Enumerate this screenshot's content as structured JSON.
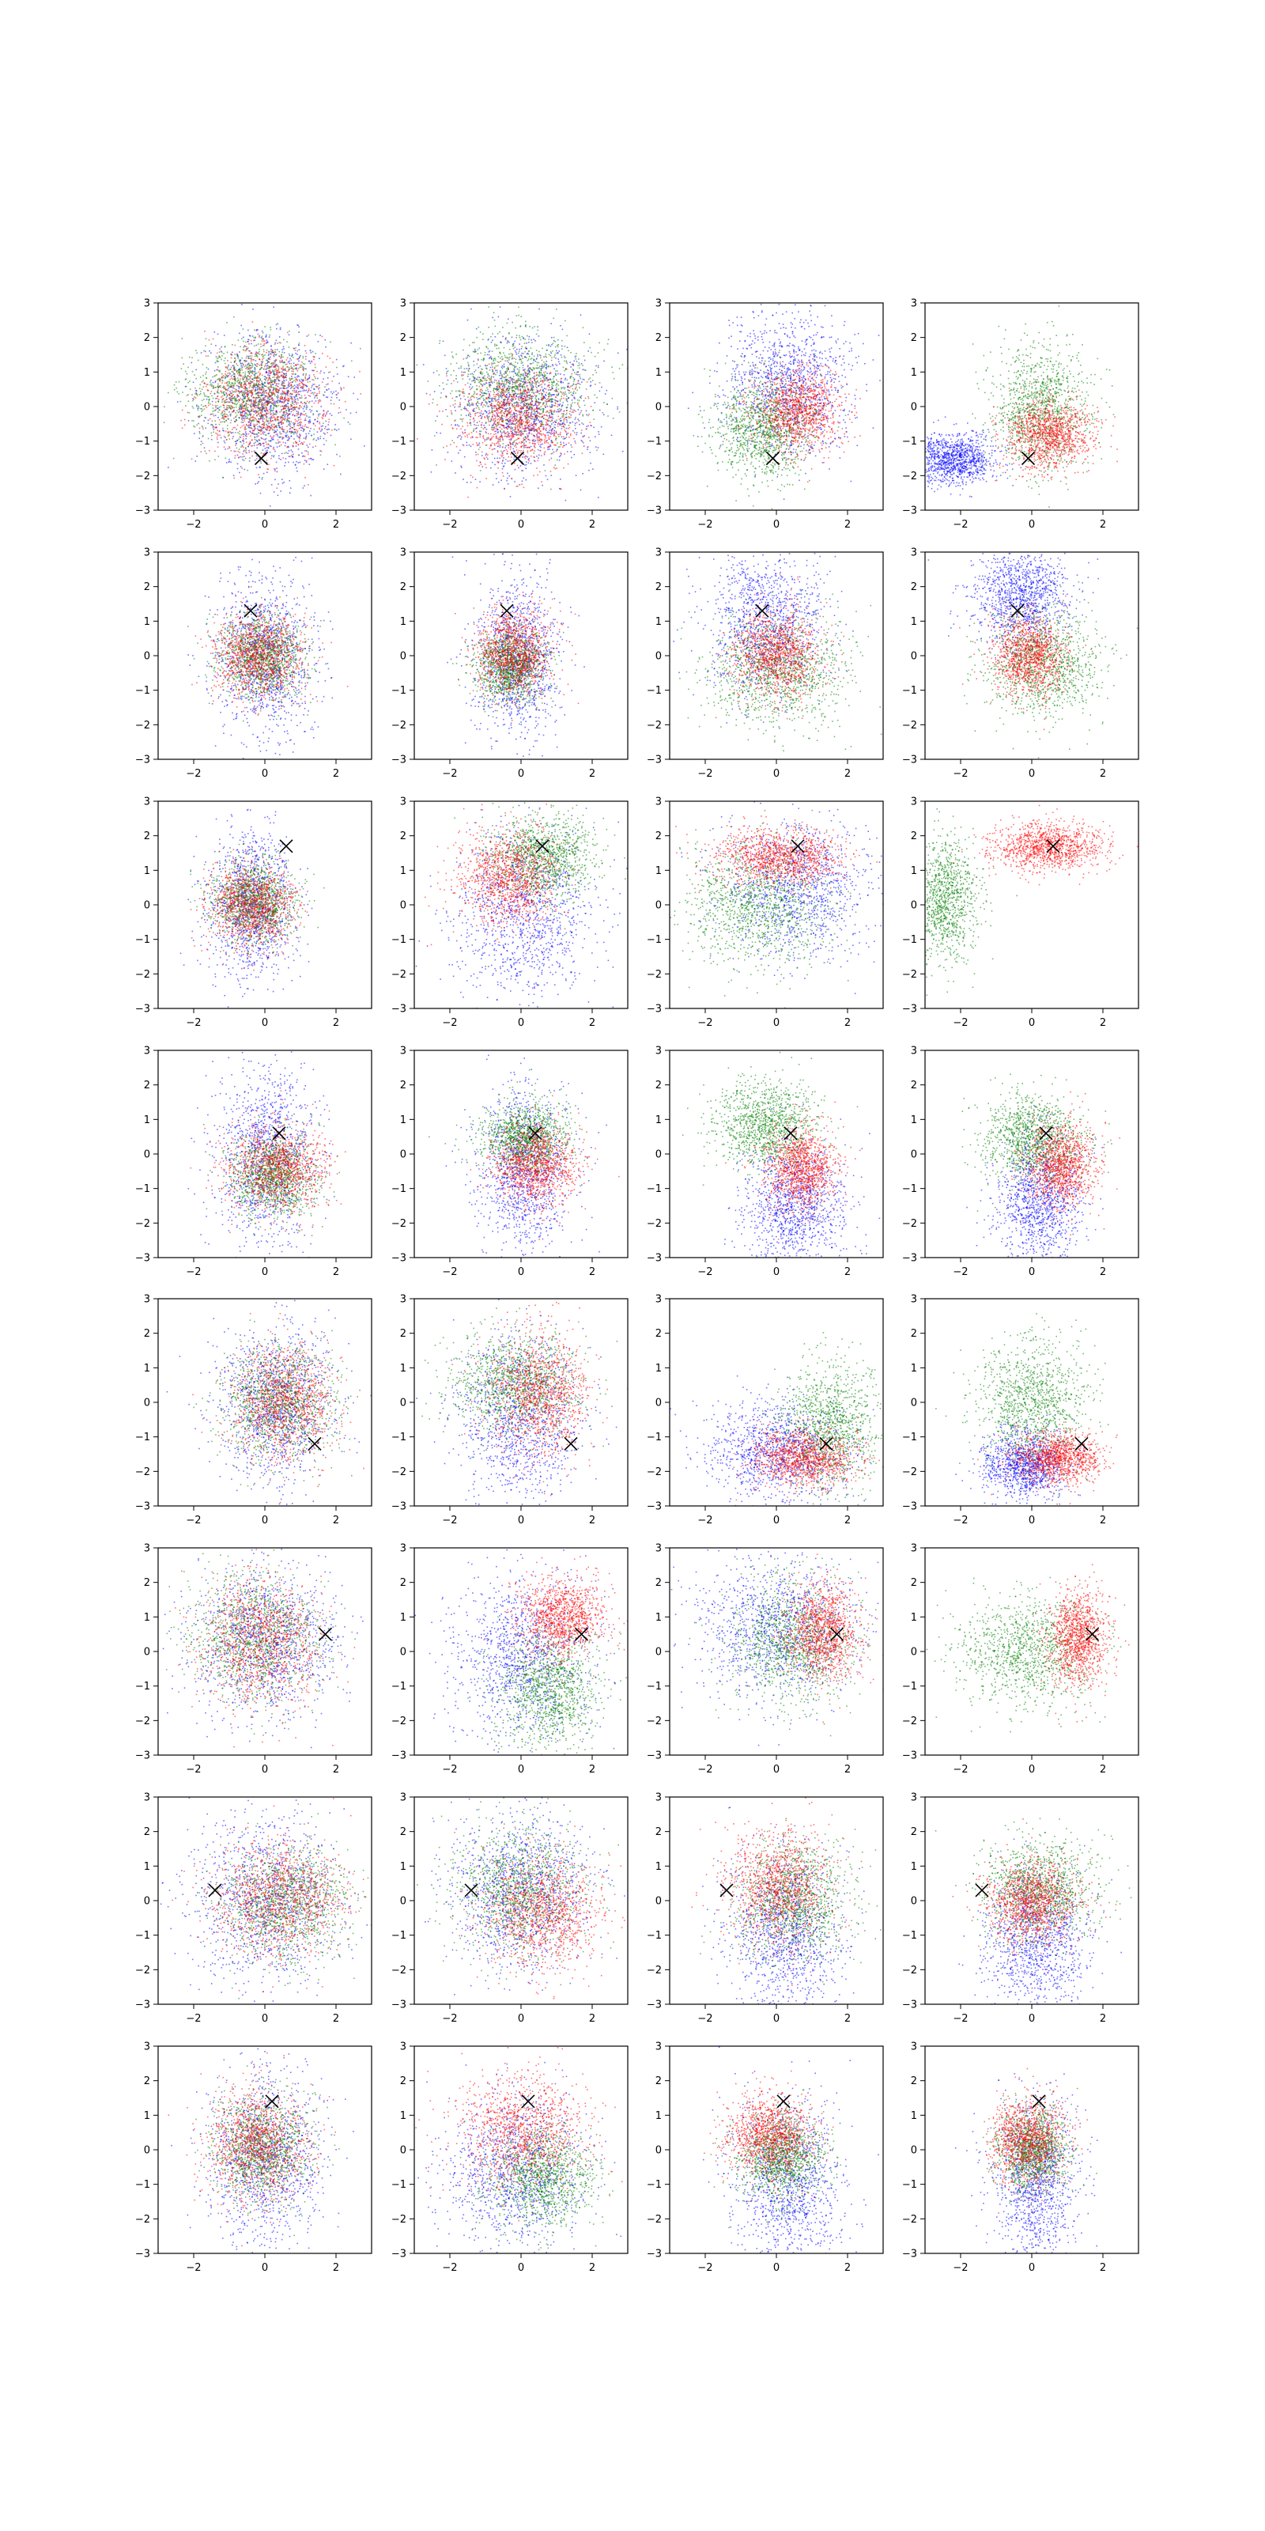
{
  "figure": {
    "rows": 8,
    "cols": 4,
    "background": "#ffffff"
  },
  "chart_data": {
    "type": "scatter",
    "xlim": [
      -3,
      3
    ],
    "ylim": [
      -3,
      3
    ],
    "x_ticks": [
      -2,
      0,
      2
    ],
    "y_ticks": [
      -3,
      -2,
      -1,
      0,
      1,
      2,
      3
    ],
    "x_tick_labels": [
      "−2",
      "0",
      "2"
    ],
    "y_tick_labels": [
      "−3",
      "−2",
      "−1",
      "0",
      "1",
      "2",
      "3"
    ],
    "grid": false,
    "legend": "none",
    "series_colors": {
      "blue": "#0000ff",
      "green": "#008000",
      "red": "#ff0000"
    },
    "marker_color": "#000000",
    "rows": [
      {
        "marker": [
          -0.1,
          -1.5
        ],
        "panels": [
          {
            "clusters": [
              {
                "color": "blue",
                "cx": 0.2,
                "cy": 0.1,
                "sx": 0.9,
                "sy": 1.0
              },
              {
                "color": "green",
                "cx": -0.4,
                "cy": 0.4,
                "sx": 0.9,
                "sy": 0.8
              },
              {
                "color": "red",
                "cx": 0.0,
                "cy": 0.2,
                "sx": 0.9,
                "sy": 0.8
              }
            ]
          },
          {
            "clusters": [
              {
                "color": "blue",
                "cx": 0.1,
                "cy": 0.0,
                "sx": 1.0,
                "sy": 1.0
              },
              {
                "color": "green",
                "cx": 0.0,
                "cy": 0.6,
                "sx": 1.0,
                "sy": 0.8
              },
              {
                "color": "red",
                "cx": -0.1,
                "cy": -0.3,
                "sx": 0.8,
                "sy": 0.7
              }
            ]
          },
          {
            "clusters": [
              {
                "color": "blue",
                "cx": 0.3,
                "cy": 0.7,
                "sx": 0.9,
                "sy": 1.0
              },
              {
                "color": "green",
                "cx": -0.4,
                "cy": -0.6,
                "sx": 0.7,
                "sy": 0.7
              },
              {
                "color": "red",
                "cx": 0.6,
                "cy": -0.1,
                "sx": 0.6,
                "sy": 0.6
              }
            ]
          },
          {
            "clusters": [
              {
                "color": "blue",
                "cx": -2.2,
                "cy": -1.5,
                "sx": 0.6,
                "sy": 0.35
              },
              {
                "color": "green",
                "cx": 0.2,
                "cy": 0.0,
                "sx": 0.7,
                "sy": 0.9
              },
              {
                "color": "red",
                "cx": 0.5,
                "cy": -0.8,
                "sx": 0.6,
                "sy": 0.5
              }
            ]
          }
        ]
      },
      {
        "marker": [
          -0.4,
          1.3
        ],
        "panels": [
          {
            "clusters": [
              {
                "color": "blue",
                "cx": 0.0,
                "cy": 0.0,
                "sx": 0.7,
                "sy": 1.2
              },
              {
                "color": "green",
                "cx": -0.1,
                "cy": 0.0,
                "sx": 0.6,
                "sy": 0.6
              },
              {
                "color": "red",
                "cx": -0.2,
                "cy": 0.0,
                "sx": 0.6,
                "sy": 0.6
              }
            ]
          },
          {
            "clusters": [
              {
                "color": "blue",
                "cx": -0.1,
                "cy": 0.0,
                "sx": 0.6,
                "sy": 1.2
              },
              {
                "color": "green",
                "cx": -0.3,
                "cy": -0.3,
                "sx": 0.5,
                "sy": 0.5
              },
              {
                "color": "red",
                "cx": -0.2,
                "cy": 0.1,
                "sx": 0.5,
                "sy": 0.6
              }
            ]
          },
          {
            "clusters": [
              {
                "color": "blue",
                "cx": -0.3,
                "cy": 1.0,
                "sx": 0.8,
                "sy": 1.0
              },
              {
                "color": "green",
                "cx": 0.0,
                "cy": -0.4,
                "sx": 1.0,
                "sy": 0.8
              },
              {
                "color": "red",
                "cx": 0.0,
                "cy": 0.1,
                "sx": 0.6,
                "sy": 0.6
              }
            ]
          },
          {
            "clusters": [
              {
                "color": "blue",
                "cx": -0.3,
                "cy": 1.8,
                "sx": 0.7,
                "sy": 0.7
              },
              {
                "color": "green",
                "cx": 0.3,
                "cy": -0.2,
                "sx": 0.8,
                "sy": 0.8
              },
              {
                "color": "red",
                "cx": -0.1,
                "cy": 0.0,
                "sx": 0.5,
                "sy": 0.6
              }
            ]
          }
        ]
      },
      {
        "marker": [
          0.6,
          1.7
        ],
        "panels": [
          {
            "clusters": [
              {
                "color": "blue",
                "cx": -0.4,
                "cy": 0.0,
                "sx": 0.6,
                "sy": 1.1
              },
              {
                "color": "green",
                "cx": -0.3,
                "cy": 0.1,
                "sx": 0.6,
                "sy": 0.6
              },
              {
                "color": "red",
                "cx": -0.4,
                "cy": 0.0,
                "sx": 0.6,
                "sy": 0.6
              }
            ]
          },
          {
            "clusters": [
              {
                "color": "blue",
                "cx": 0.1,
                "cy": -0.3,
                "sx": 1.0,
                "sy": 1.2
              },
              {
                "color": "green",
                "cx": 0.6,
                "cy": 1.4,
                "sx": 0.7,
                "sy": 0.6
              },
              {
                "color": "red",
                "cx": -0.4,
                "cy": 0.8,
                "sx": 0.7,
                "sy": 0.7
              }
            ]
          },
          {
            "clusters": [
              {
                "color": "blue",
                "cx": 0.6,
                "cy": 0.5,
                "sx": 1.0,
                "sy": 1.0
              },
              {
                "color": "green",
                "cx": -0.6,
                "cy": 0.0,
                "sx": 1.0,
                "sy": 0.9
              },
              {
                "color": "red",
                "cx": 0.0,
                "cy": 1.4,
                "sx": 0.9,
                "sy": 0.4
              }
            ]
          },
          {
            "clusters": [
              {
                "color": "green",
                "cx": -2.5,
                "cy": 0.2,
                "sx": 0.5,
                "sy": 0.9
              },
              {
                "color": "red",
                "cx": 0.4,
                "cy": 1.7,
                "sx": 0.8,
                "sy": 0.35
              }
            ]
          }
        ]
      },
      {
        "marker": [
          0.4,
          0.6
        ],
        "panels": [
          {
            "clusters": [
              {
                "color": "blue",
                "cx": 0.0,
                "cy": 0.0,
                "sx": 0.7,
                "sy": 1.3
              },
              {
                "color": "green",
                "cx": 0.2,
                "cy": -0.6,
                "sx": 0.6,
                "sy": 0.6
              },
              {
                "color": "red",
                "cx": 0.3,
                "cy": -0.4,
                "sx": 0.7,
                "sy": 0.6
              }
            ]
          },
          {
            "clusters": [
              {
                "color": "blue",
                "cx": 0.1,
                "cy": -0.5,
                "sx": 0.7,
                "sy": 1.2
              },
              {
                "color": "green",
                "cx": 0.1,
                "cy": 0.5,
                "sx": 0.6,
                "sy": 0.5
              },
              {
                "color": "red",
                "cx": 0.4,
                "cy": -0.3,
                "sx": 0.6,
                "sy": 0.6
              }
            ]
          },
          {
            "clusters": [
              {
                "color": "blue",
                "cx": 0.5,
                "cy": -1.5,
                "sx": 0.7,
                "sy": 0.9
              },
              {
                "color": "green",
                "cx": -0.3,
                "cy": 0.9,
                "sx": 0.7,
                "sy": 0.6
              },
              {
                "color": "red",
                "cx": 0.7,
                "cy": -0.4,
                "sx": 0.5,
                "sy": 0.6
              }
            ]
          },
          {
            "clusters": [
              {
                "color": "blue",
                "cx": 0.2,
                "cy": -1.3,
                "sx": 0.6,
                "sy": 0.9
              },
              {
                "color": "green",
                "cx": 0.0,
                "cy": 0.5,
                "sx": 0.7,
                "sy": 0.6
              },
              {
                "color": "red",
                "cx": 0.8,
                "cy": -0.3,
                "sx": 0.5,
                "sy": 0.6
              }
            ]
          }
        ]
      },
      {
        "marker": [
          1.4,
          -1.2
        ],
        "panels": [
          {
            "clusters": [
              {
                "color": "blue",
                "cx": 0.3,
                "cy": 0.0,
                "sx": 0.8,
                "sy": 1.1
              },
              {
                "color": "green",
                "cx": 0.4,
                "cy": 0.0,
                "sx": 0.8,
                "sy": 0.8
              },
              {
                "color": "red",
                "cx": 0.5,
                "cy": 0.0,
                "sx": 0.7,
                "sy": 0.8
              }
            ]
          },
          {
            "clusters": [
              {
                "color": "blue",
                "cx": 0.0,
                "cy": -0.5,
                "sx": 0.9,
                "sy": 1.2
              },
              {
                "color": "green",
                "cx": -0.2,
                "cy": 0.6,
                "sx": 0.9,
                "sy": 0.7
              },
              {
                "color": "red",
                "cx": 0.5,
                "cy": 0.3,
                "sx": 0.7,
                "sy": 0.9
              }
            ]
          },
          {
            "clusters": [
              {
                "color": "blue",
                "cx": 0.0,
                "cy": -1.4,
                "sx": 1.0,
                "sy": 0.7
              },
              {
                "color": "green",
                "cx": 1.5,
                "cy": -0.6,
                "sx": 0.7,
                "sy": 0.9
              },
              {
                "color": "red",
                "cx": 0.8,
                "cy": -1.6,
                "sx": 0.7,
                "sy": 0.4
              }
            ]
          },
          {
            "clusters": [
              {
                "color": "blue",
                "cx": -0.2,
                "cy": -1.8,
                "sx": 0.6,
                "sy": 0.5
              },
              {
                "color": "green",
                "cx": 0.0,
                "cy": 0.0,
                "sx": 0.8,
                "sy": 0.9
              },
              {
                "color": "red",
                "cx": 0.7,
                "cy": -1.6,
                "sx": 0.6,
                "sy": 0.35
              }
            ]
          }
        ]
      },
      {
        "marker": [
          1.7,
          0.5
        ],
        "panels": [
          {
            "clusters": [
              {
                "color": "blue",
                "cx": 0.0,
                "cy": 0.3,
                "sx": 1.0,
                "sy": 1.1
              },
              {
                "color": "green",
                "cx": -0.3,
                "cy": 0.4,
                "sx": 0.9,
                "sy": 0.9
              },
              {
                "color": "red",
                "cx": -0.1,
                "cy": 0.3,
                "sx": 0.8,
                "sy": 0.9
              }
            ]
          },
          {
            "clusters": [
              {
                "color": "blue",
                "cx": 0.0,
                "cy": -0.2,
                "sx": 1.0,
                "sy": 1.2
              },
              {
                "color": "green",
                "cx": 0.8,
                "cy": -1.1,
                "sx": 0.7,
                "sy": 0.8
              },
              {
                "color": "red",
                "cx": 1.1,
                "cy": 1.0,
                "sx": 0.6,
                "sy": 0.6
              }
            ]
          },
          {
            "clusters": [
              {
                "color": "blue",
                "cx": 0.0,
                "cy": 0.7,
                "sx": 1.1,
                "sy": 1.0
              },
              {
                "color": "green",
                "cx": 0.4,
                "cy": 0.3,
                "sx": 0.9,
                "sy": 0.9
              },
              {
                "color": "red",
                "cx": 1.3,
                "cy": 0.6,
                "sx": 0.5,
                "sy": 0.7
              }
            ]
          },
          {
            "clusters": [
              {
                "color": "green",
                "cx": -0.2,
                "cy": 0.0,
                "sx": 1.0,
                "sy": 0.8
              },
              {
                "color": "red",
                "cx": 1.3,
                "cy": 0.4,
                "sx": 0.4,
                "sy": 0.7
              }
            ]
          }
        ]
      },
      {
        "marker": [
          -1.4,
          0.3
        ],
        "panels": [
          {
            "clusters": [
              {
                "color": "blue",
                "cx": 0.0,
                "cy": 0.0,
                "sx": 1.0,
                "sy": 1.2
              },
              {
                "color": "green",
                "cx": 0.6,
                "cy": 0.0,
                "sx": 0.9,
                "sy": 0.8
              },
              {
                "color": "red",
                "cx": 0.4,
                "cy": 0.1,
                "sx": 0.9,
                "sy": 0.8
              }
            ]
          },
          {
            "clusters": [
              {
                "color": "blue",
                "cx": 0.0,
                "cy": 0.3,
                "sx": 1.0,
                "sy": 1.1
              },
              {
                "color": "green",
                "cx": -0.1,
                "cy": 0.3,
                "sx": 0.9,
                "sy": 0.9
              },
              {
                "color": "red",
                "cx": 0.6,
                "cy": -0.3,
                "sx": 0.8,
                "sy": 0.8
              }
            ]
          },
          {
            "clusters": [
              {
                "color": "blue",
                "cx": 0.3,
                "cy": -1.0,
                "sx": 0.8,
                "sy": 1.2
              },
              {
                "color": "green",
                "cx": 0.5,
                "cy": 0.0,
                "sx": 0.8,
                "sy": 0.8
              },
              {
                "color": "red",
                "cx": 0.0,
                "cy": 0.4,
                "sx": 0.7,
                "sy": 0.8
              }
            ]
          },
          {
            "clusters": [
              {
                "color": "blue",
                "cx": 0.1,
                "cy": -1.2,
                "sx": 0.7,
                "sy": 1.0
              },
              {
                "color": "green",
                "cx": 0.2,
                "cy": 0.4,
                "sx": 0.8,
                "sy": 0.7
              },
              {
                "color": "red",
                "cx": 0.0,
                "cy": 0.0,
                "sx": 0.6,
                "sy": 0.6
              }
            ]
          }
        ]
      },
      {
        "marker": [
          0.2,
          1.4
        ],
        "panels": [
          {
            "clusters": [
              {
                "color": "blue",
                "cx": 0.0,
                "cy": -0.3,
                "sx": 0.8,
                "sy": 1.2
              },
              {
                "color": "green",
                "cx": -0.1,
                "cy": 0.1,
                "sx": 0.7,
                "sy": 0.8
              },
              {
                "color": "red",
                "cx": -0.2,
                "cy": 0.2,
                "sx": 0.7,
                "sy": 0.8
              }
            ]
          },
          {
            "clusters": [
              {
                "color": "blue",
                "cx": -0.2,
                "cy": -0.6,
                "sx": 1.0,
                "sy": 1.1
              },
              {
                "color": "green",
                "cx": 0.6,
                "cy": -0.8,
                "sx": 0.7,
                "sy": 0.7
              },
              {
                "color": "red",
                "cx": 0.0,
                "cy": 0.6,
                "sx": 0.9,
                "sy": 0.8
              }
            ]
          },
          {
            "clusters": [
              {
                "color": "blue",
                "cx": 0.3,
                "cy": -1.0,
                "sx": 0.8,
                "sy": 1.2
              },
              {
                "color": "green",
                "cx": 0.1,
                "cy": -0.2,
                "sx": 0.6,
                "sy": 0.6
              },
              {
                "color": "red",
                "cx": -0.2,
                "cy": 0.4,
                "sx": 0.6,
                "sy": 0.6
              }
            ]
          },
          {
            "clusters": [
              {
                "color": "blue",
                "cx": 0.1,
                "cy": -1.0,
                "sx": 0.6,
                "sy": 1.2
              },
              {
                "color": "green",
                "cx": 0.0,
                "cy": 0.0,
                "sx": 0.5,
                "sy": 0.6
              },
              {
                "color": "red",
                "cx": -0.1,
                "cy": 0.3,
                "sx": 0.5,
                "sy": 0.6
              }
            ]
          }
        ]
      }
    ]
  }
}
